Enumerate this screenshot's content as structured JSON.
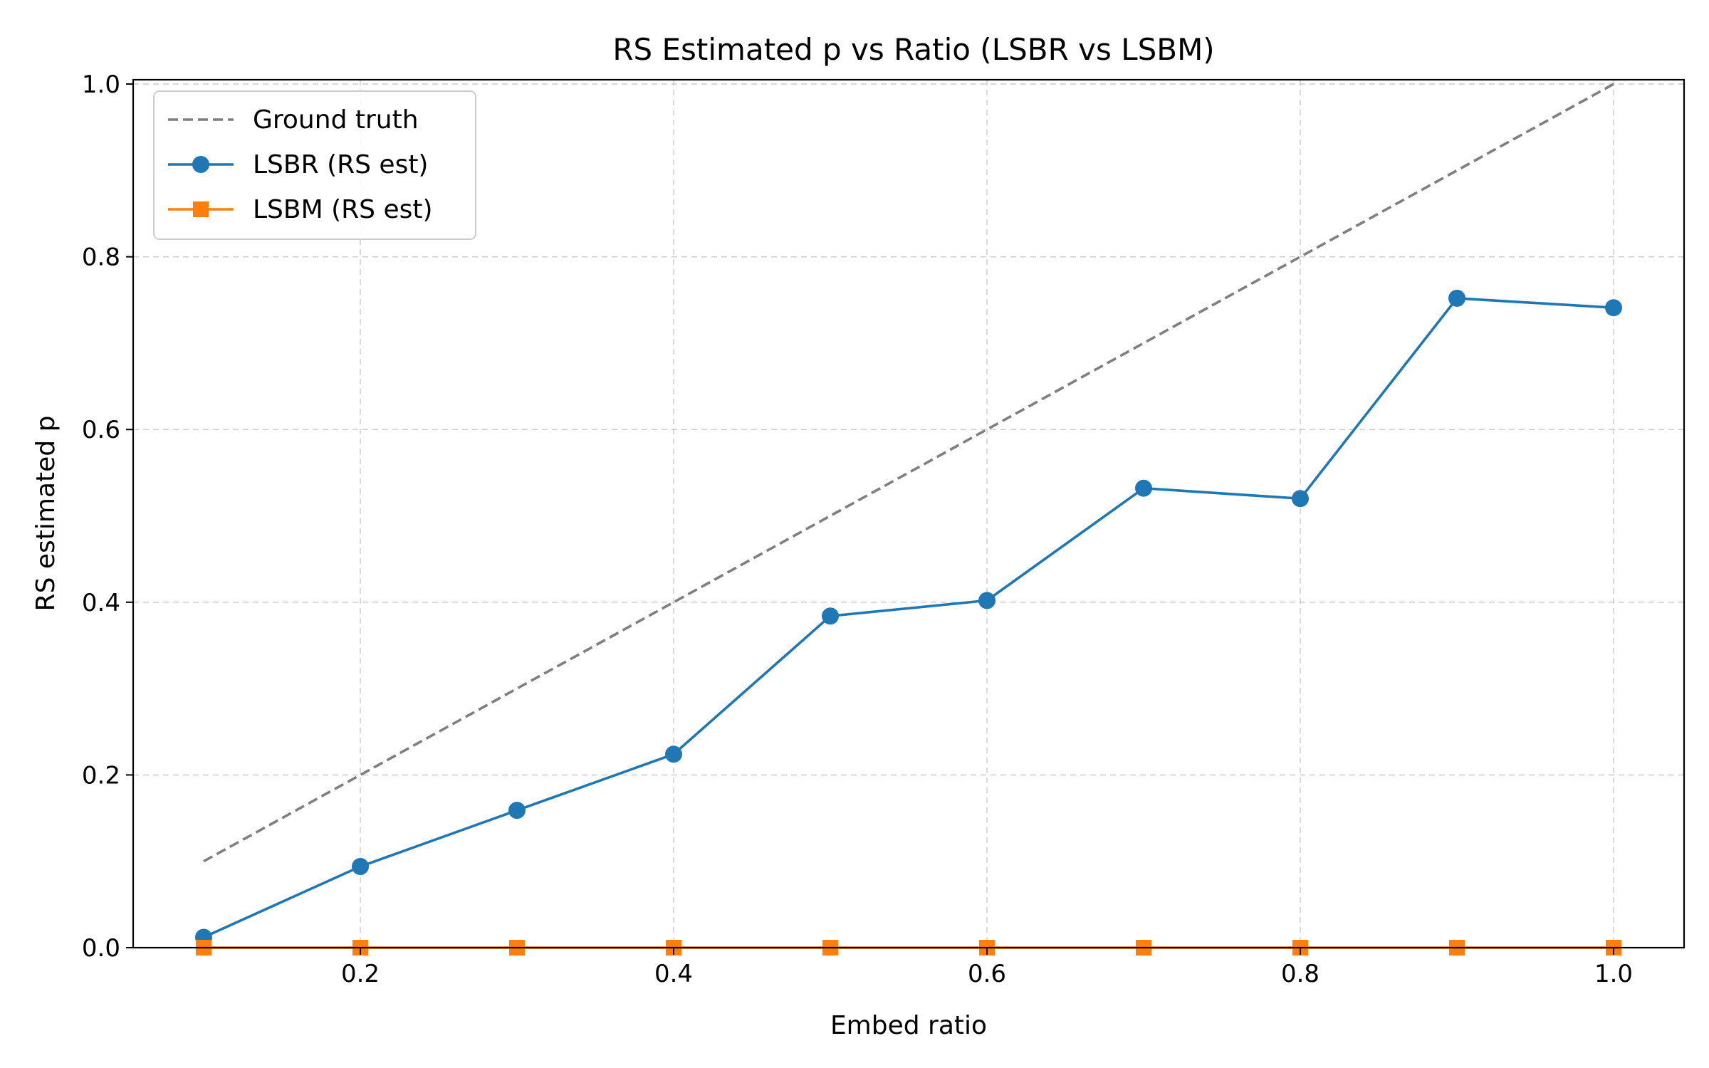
{
  "chart_data": {
    "type": "line",
    "title": "RS Estimated p vs Ratio (LSBR vs LSBM)",
    "xlabel": "Embed ratio",
    "ylabel": "RS estimated p",
    "xlim": [
      0.055,
      1.045
    ],
    "ylim": [
      0.0,
      1.005
    ],
    "xticks": [
      "0.2",
      "0.4",
      "0.6",
      "0.8",
      "1.0"
    ],
    "yticks": [
      "0.0",
      "0.2",
      "0.4",
      "0.6",
      "0.8",
      "1.0"
    ],
    "grid": true,
    "legend_position": "top-left",
    "x": [
      0.1,
      0.2,
      0.3,
      0.4,
      0.5,
      0.6,
      0.7,
      0.8,
      0.9,
      1.0
    ],
    "series": [
      {
        "name": "Ground truth",
        "style": "dashed",
        "marker": "none",
        "color": "#7f7f7f",
        "values": [
          0.1,
          0.2,
          0.3,
          0.4,
          0.5,
          0.6,
          0.7,
          0.8,
          0.9,
          1.0
        ]
      },
      {
        "name": "LSBR (RS est)",
        "style": "solid",
        "marker": "circle",
        "color": "#1f77b4",
        "values": [
          0.012,
          0.094,
          0.159,
          0.224,
          0.384,
          0.402,
          0.532,
          0.52,
          0.752,
          0.741
        ]
      },
      {
        "name": "LSBM (RS est)",
        "style": "solid",
        "marker": "square",
        "color": "#ff7f0e",
        "values": [
          0.0,
          0.0,
          0.0,
          0.0,
          0.0,
          0.0,
          0.0,
          0.0,
          0.0,
          0.0
        ]
      }
    ]
  }
}
